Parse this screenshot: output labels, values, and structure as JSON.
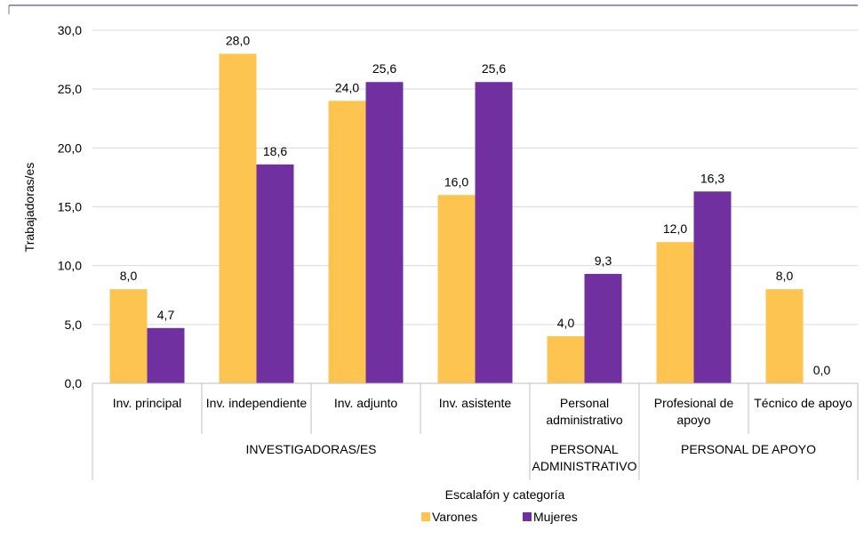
{
  "chart_data": {
    "type": "bar",
    "ylabel": "Trabajadoras/es",
    "xlabel": "Escalafón y categoría",
    "ylim": [
      0,
      30
    ],
    "yticks": [
      "0,0",
      "5,0",
      "10,0",
      "15,0",
      "20,0",
      "25,0",
      "30,0"
    ],
    "grid": true,
    "legend_position": "bottom",
    "categories": [
      [
        "Inv. principal"
      ],
      [
        "Inv. independiente"
      ],
      [
        "Inv. adjunto"
      ],
      [
        "Inv. asistente"
      ],
      [
        "Personal",
        "administrativo"
      ],
      [
        "Profesional de",
        "apoyo"
      ],
      [
        "Técnico de apoyo"
      ]
    ],
    "groups": [
      {
        "label": [
          "INVESTIGADORAS/ES"
        ],
        "count": 4
      },
      {
        "label": [
          "PERSONAL",
          "ADMINISTRATIVO"
        ],
        "count": 1
      },
      {
        "label": [
          "PERSONAL DE APOYO"
        ],
        "count": 2
      }
    ],
    "series": [
      {
        "name": "Varones",
        "color": "#FDC54F",
        "values": [
          8.0,
          28.0,
          24.0,
          16.0,
          4.0,
          12.0,
          8.0
        ],
        "labels": [
          "8,0",
          "28,0",
          "24,0",
          "16,0",
          "4,0",
          "12,0",
          "8,0"
        ]
      },
      {
        "name": "Mujeres",
        "color": "#7030A0",
        "values": [
          4.7,
          18.6,
          25.6,
          25.6,
          9.3,
          16.3,
          0.0
        ],
        "labels": [
          "4,7",
          "18,6",
          "25,6",
          "25,6",
          "9,3",
          "16,3",
          "0,0"
        ]
      }
    ]
  }
}
